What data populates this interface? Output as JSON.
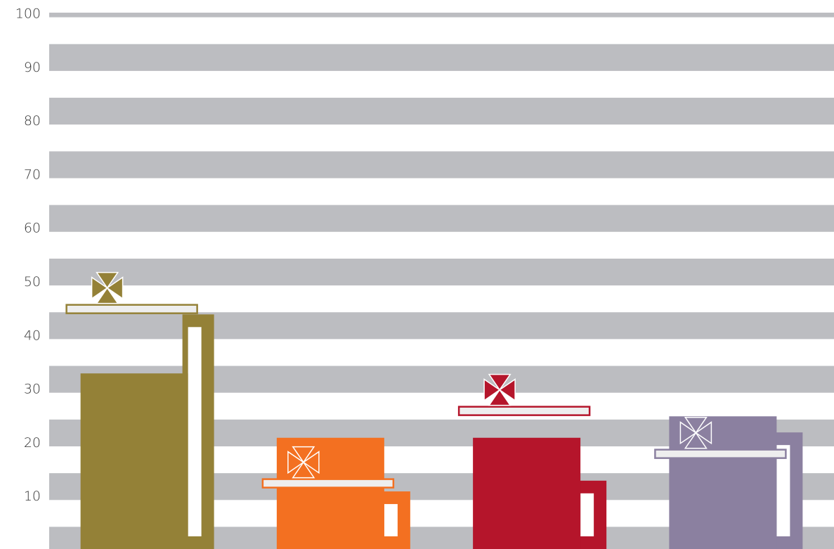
{
  "chart_data": {
    "type": "pictorial-bar",
    "categories": [
      null,
      null,
      null,
      null
    ],
    "colors": [
      "#948137",
      "#f37021",
      "#b5152b",
      "#8b80a0"
    ],
    "series": [
      {
        "values": [
          33,
          21,
          21,
          25
        ]
      },
      {
        "values": [
          44,
          11,
          13,
          22
        ]
      },
      {
        "values": [
          45,
          12.5,
          26,
          18
        ]
      }
    ],
    "ylim": [
      0,
      100
    ],
    "yticks": [
      10,
      20,
      30,
      40,
      50,
      60,
      70,
      80,
      90,
      100
    ],
    "grid": true
  }
}
